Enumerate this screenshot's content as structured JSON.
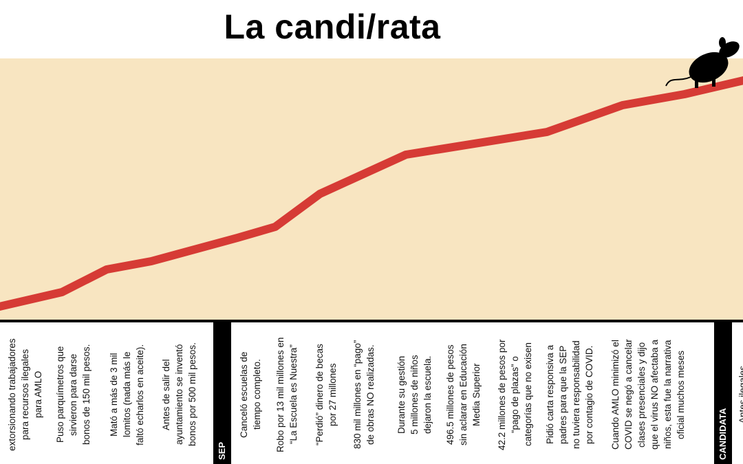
{
  "title": "La candi/rata",
  "sections": [
    "SEP",
    "CANDIDATA"
  ],
  "notes": [
    {
      "lines": [
        "extorsionando trabajadores",
        "para recursos ilegales",
        "para  AMLO"
      ]
    },
    {
      "lines": [
        "Puso parquímetros que",
        "sirvieron para darse",
        "bonos de 150 mil pesos."
      ]
    },
    {
      "lines": [
        "Mató a más de 3 mil",
        "lomitos (nada más le",
        "faltó echarlos en aceite)."
      ]
    },
    {
      "lines": [
        "Antes de salir del",
        "ayuntamiento se inventó",
        "bonos por 500 mil pesos."
      ]
    },
    {
      "lines": [
        "Canceló escuelas de",
        "tiempo completo."
      ]
    },
    {
      "lines": [
        "Robo por 13 mil millones en",
        "“La Escuela es Nuestra”"
      ]
    },
    {
      "lines": [
        "“Perdió” dinero de becas",
        "por 27 millones"
      ]
    },
    {
      "lines": [
        "830 mil millones en “pago”",
        "de obras NO realizadas."
      ]
    },
    {
      "lines": [
        "Durante su gestión",
        "5 millones de niños",
        "dejaron la escuela."
      ]
    },
    {
      "lines": [
        "496.5 millones de pesos",
        "sin aclarar en Educación",
        "Media Superior"
      ]
    },
    {
      "lines": [
        "42.2 millones de pesos por",
        "“pago de plazas” o",
        "categorías que no exisen"
      ]
    },
    {
      "lines": [
        "Pidió carta responsiva a",
        "padres para que la SEP",
        "no tuviera responsabilidad",
        "por contagio de COVID."
      ]
    },
    {
      "lines": [
        "Cuando AMLO minimizó el",
        "COVID se negó a cancelar",
        "clases presenciales y dijo",
        "que el virus NO afectaba a",
        "niños, esta fue la narrativa",
        "oficial muchos meses"
      ]
    },
    {
      "lines": [
        "Antes ilegales"
      ]
    }
  ]
}
